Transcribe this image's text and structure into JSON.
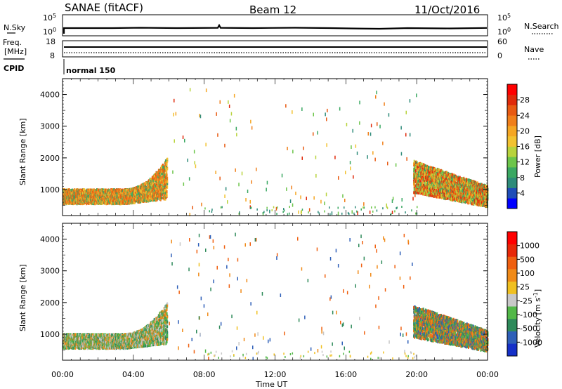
{
  "header": {
    "left": "SANAE (fitACF)",
    "center": "Beam 12",
    "right": "11/Oct/2016"
  },
  "strips": {
    "nsky_label": "N.Sky",
    "nsearch_label": "N.Search",
    "freq_label_1": "Freq.",
    "freq_label_2": "[MHz]",
    "nave_label": "Nave",
    "cpid_label": "CPID",
    "cpid_value": "normal 150",
    "nsky_ticks": [
      "10^5",
      "10^0"
    ],
    "nsearch_ticks": [
      "10^5",
      "10^0"
    ],
    "freq_ticks": [
      "18",
      "8"
    ],
    "nave_ticks": [
      "60",
      "0"
    ]
  },
  "colorbars": {
    "power": {
      "label": "Power [dB]",
      "ticks": [
        "28",
        "24",
        "20",
        "16",
        "12",
        "8",
        "4"
      ],
      "colors": [
        "#0000ff",
        "#1f4db8",
        "#2e8b7a",
        "#3aa862",
        "#6cc54a",
        "#b8d33c",
        "#f2c230",
        "#f5a623",
        "#f07f1a",
        "#e85a12",
        "#e02a0a",
        "#ff0000"
      ]
    },
    "velocity": {
      "label_prefix": "Velocity  [m s",
      "label_sup": "-1",
      "label_suffix": "]",
      "ticks": [
        "1000",
        "500",
        "100",
        "25",
        "-25",
        "-100",
        "-500",
        "-1000"
      ],
      "colors": [
        "#1530c8",
        "#2e5fb8",
        "#2e8a5a",
        "#52b848",
        "#c8c8c8",
        "#f0c020",
        "#f08a18",
        "#f06010",
        "#e82808",
        "#ff0000"
      ]
    }
  },
  "chart_data": [
    {
      "type": "heatmap",
      "quantity": "Power",
      "units": "dB",
      "xlabel": "",
      "ylabel": "Slant Range [km]",
      "x_ticks": [
        "00:00",
        "04:00",
        "08:00",
        "12:00",
        "16:00",
        "20:00",
        "00:00"
      ],
      "y_ticks": [
        1000,
        2000,
        3000,
        4000
      ],
      "x_range_hours": [
        0,
        24
      ],
      "y_range_km": [
        180,
        4500
      ],
      "regions": [
        {
          "name": "early",
          "t_start": 0.0,
          "t_end": 5.9,
          "range_low": 500,
          "range_high": 1250,
          "values": [
            8,
            16,
            22,
            26
          ]
        },
        {
          "name": "late",
          "t_start": 19.8,
          "t_end": 24.0,
          "range_low": 450,
          "range_high": 1900,
          "values": [
            8,
            14,
            20,
            26,
            30
          ]
        }
      ]
    },
    {
      "type": "heatmap",
      "quantity": "Velocity",
      "units": "m s^-1",
      "xlabel": "Time UT",
      "ylabel": "Slant Range [km]",
      "x_ticks": [
        "00:00",
        "04:00",
        "08:00",
        "12:00",
        "16:00",
        "20:00",
        "00:00"
      ],
      "y_ticks": [
        1000,
        2000,
        3000,
        4000
      ],
      "x_range_hours": [
        0,
        24
      ],
      "y_range_km": [
        180,
        4500
      ],
      "regions": [
        {
          "name": "early",
          "t_start": 0.0,
          "t_end": 5.9,
          "range_low": 500,
          "range_high": 1250,
          "values": [
            -100,
            25,
            100,
            500
          ]
        },
        {
          "name": "late",
          "t_start": 19.8,
          "t_end": 24.0,
          "range_low": 450,
          "range_high": 1900,
          "values": [
            -500,
            -100,
            100,
            500,
            1000
          ]
        }
      ]
    }
  ]
}
